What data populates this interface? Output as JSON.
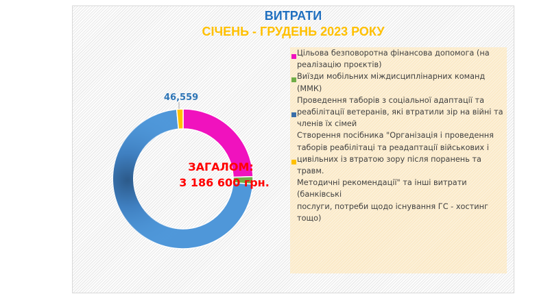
{
  "chart_data": {
    "type": "donut",
    "title": "ВИТРАТИ",
    "subtitle": "СІЧЕНЬ - ГРУДЕНЬ 2023 РОКУ",
    "center_text": [
      "ЗАГАЛОМ:",
      "3 186 600 грн."
    ],
    "total": 3186600,
    "legend_position": "right",
    "series": [
      {
        "name": "Цільова безповоротна фінансова допомога (на реалізацію проєктів)",
        "value": 780000,
        "color": "#f012be",
        "labeled": false
      },
      {
        "name": "Виїзди мобільних міждисциплінарних команд (ММК)",
        "value": 55000,
        "color": "#70ad47",
        "labeled": false
      },
      {
        "name": "Проведення таборів з соціальної адаптації та реабілітації ветеранів, які втратили зір на війні та членів їх сімей",
        "value": 2305041,
        "color": "#4f97d9",
        "labeled": false
      },
      {
        "name": "Створення посібника \"Організація і проведення таборів реабілітаці та реадаптації військових і цивільних із втратою зору після поранень та травм. Методичні рекомендації\" та інші витрати (банківські послуги, потреби щодо існування ГС - хостинг тощо)",
        "value": 46559,
        "color": "#ffc000",
        "labeled": true,
        "label": "46,559"
      }
    ]
  },
  "header": {
    "title": "ВИТРАТИ",
    "subtitle": "СІЧЕНЬ - ГРУДЕНЬ 2023 РОКУ"
  },
  "center": {
    "line1": "ЗАГАЛОМ:",
    "line2": "3 186 600 грн."
  },
  "data_label": "46,559",
  "legend": {
    "items": [
      {
        "lines": [
          "Цільова безповоротна фінансова допомога (на",
          "реалізацію проєктів)"
        ],
        "color": "#f012be"
      },
      {
        "lines": [
          "Виїзди мобільних міждисциплінарних команд",
          "(ММК)"
        ],
        "color": "#70ad47"
      },
      {
        "lines": [
          "Проведення таборів з соціальної адаптації та",
          "реабілітації ветеранів, які втратили зір на війні та",
          "членів їх сімей"
        ],
        "color": "#3a6fa8"
      },
      {
        "lines": [
          "Створення посібника \"Організація і проведення",
          "таборів реабілітаці та реадаптації військових і",
          "цивільних із втратою зору після поранень та травм.",
          "Методичні рекомендації\" та інші витрати (банківські",
          "послуги, потреби щодо існування ГС - хостинг тощо)"
        ],
        "color": "#ffc000"
      }
    ]
  }
}
